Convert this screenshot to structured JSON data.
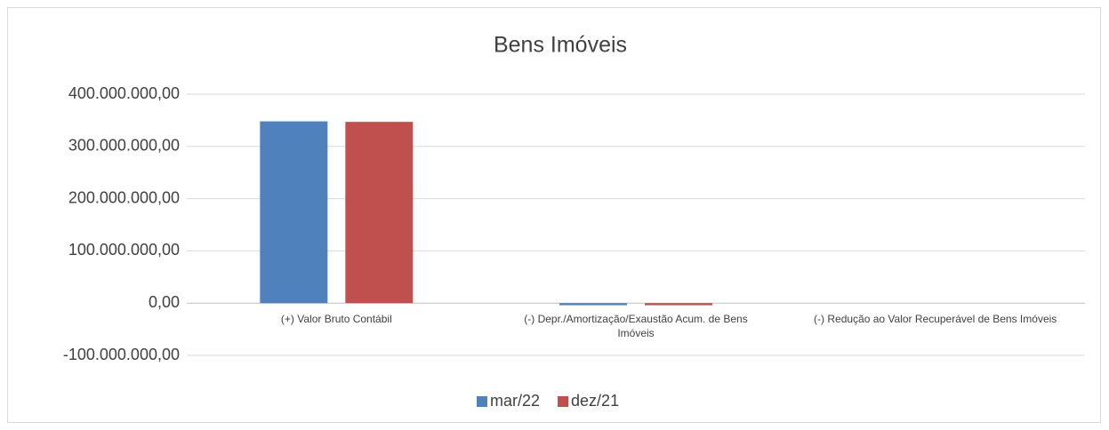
{
  "chart_data": {
    "type": "bar",
    "title": "Bens Imóveis",
    "categories": [
      "(+) Valor Bruto Contábil",
      "(-) Depr./Amortização/Exaustão Acum. de Bens Imóveis",
      "(-) Redução ao Valor Recuperável de Bens Imóveis"
    ],
    "series": [
      {
        "name": "mar/22",
        "color": "#4f81bd",
        "values": [
          348000000,
          -4000000,
          0
        ]
      },
      {
        "name": "dez/21",
        "color": "#c0504d",
        "values": [
          347000000,
          -4000000,
          0
        ]
      }
    ],
    "ylim": [
      -100000000,
      400000000
    ],
    "yticks": [
      {
        "value": -100000000,
        "label": "-100.000.000,00"
      },
      {
        "value": 0,
        "label": "0,00"
      },
      {
        "value": 100000000,
        "label": "100.000.000,00"
      },
      {
        "value": 200000000,
        "label": "200.000.000,00"
      },
      {
        "value": 300000000,
        "label": "300.000.000,00"
      },
      {
        "value": 400000000,
        "label": "400.000.000,00"
      }
    ],
    "grid": true,
    "legend": "bottom"
  }
}
